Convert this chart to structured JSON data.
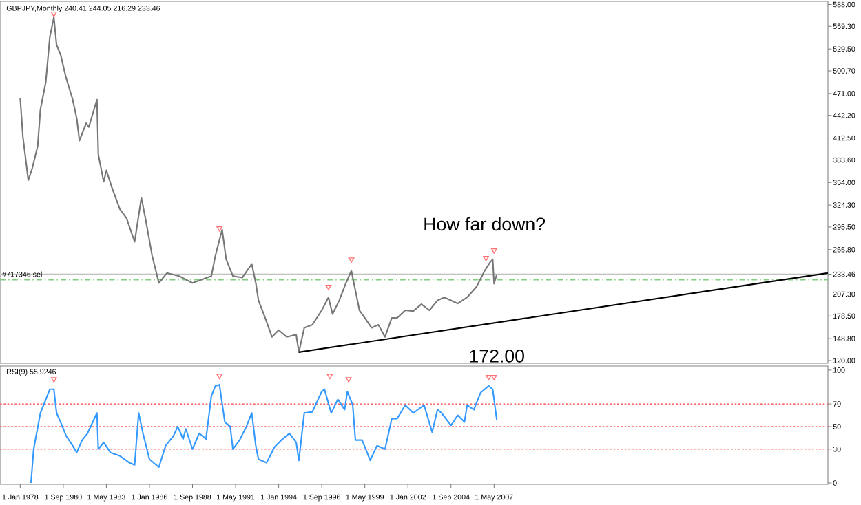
{
  "chart_data": [
    {
      "type": "line",
      "title": "GBPJPY,Monthly  240.41 244.05 216.29 233.46",
      "xlim": [
        "1976-10",
        "2028-01"
      ],
      "ylim": [
        116.4,
        592.1
      ],
      "tick_labels": "y",
      "yticks": [
        {
          "value": 120,
          "label": "120.00"
        },
        {
          "value": 148.8,
          "label": "148.80"
        },
        {
          "value": 178.5,
          "label": "178.50"
        },
        {
          "value": 207.3,
          "label": "207.30"
        },
        {
          "value": 233.46,
          "label": "233.46"
        },
        {
          "value": 265.8,
          "label": "265.80"
        },
        {
          "value": 295.5,
          "label": "295.50"
        },
        {
          "value": 324.3,
          "label": "324.30"
        },
        {
          "value": 354,
          "label": "354.00"
        },
        {
          "value": 383.6,
          "label": "383.60"
        },
        {
          "value": 412.5,
          "label": "412.50"
        },
        {
          "value": 442.2,
          "label": "442.20"
        },
        {
          "value": 471,
          "label": "471.00"
        },
        {
          "value": 500.7,
          "label": "500.70"
        },
        {
          "value": 529.5,
          "label": "529.50"
        },
        {
          "value": 559.3,
          "label": "559.30"
        },
        {
          "value": 588,
          "label": "588.00"
        }
      ],
      "series": [
        {
          "color": "#777777",
          "x": [
            "1978-01",
            "1978-03",
            "1978-07",
            "1978-10",
            "1979-02",
            "1979-04",
            "1979-08",
            "1979-11",
            "1980-02",
            "1980-04",
            "1980-07",
            "1980-11",
            "1981-04",
            "1981-07",
            "1981-09",
            "1982-02",
            "1982-04",
            "1982-10",
            "1982-11",
            "1983-03",
            "1983-05",
            "1983-09",
            "1984-03",
            "1984-08",
            "1985-02",
            "1985-07",
            "1985-10",
            "1986-03",
            "1986-08",
            "1987-02",
            "1987-11",
            "1988-09",
            "1989-11",
            "1990-02",
            "1990-07",
            "1990-10",
            "1991-03",
            "1991-10",
            "1992-05",
            "1992-08",
            "1992-10",
            "1993-03",
            "1993-08",
            "1994-01",
            "1994-07",
            "1995-02",
            "1995-04",
            "1995-08",
            "1996-02",
            "1996-09",
            "1997-02",
            "1997-05",
            "1997-10",
            "1998-03",
            "1998-07",
            "1998-10",
            "1999-01",
            "1999-05",
            "1999-10",
            "2000-03",
            "2000-08",
            "2001-01",
            "2001-05",
            "2001-11",
            "2002-05",
            "2002-11",
            "2003-05",
            "2003-11",
            "2004-04",
            "2005-02",
            "2005-09",
            "2006-04",
            "2006-10",
            "2007-02",
            "2007-04",
            "2007-05",
            "2007-07"
          ],
          "values": [
            465,
            414,
            357,
            373,
            402,
            450,
            486,
            545,
            571,
            535,
            522,
            492,
            463,
            438,
            409,
            432,
            427,
            463,
            391,
            355,
            370,
            348,
            319,
            307,
            276,
            334,
            307,
            258,
            222,
            235,
            231,
            222,
            231,
            258,
            292,
            253,
            231,
            229,
            247,
            222,
            199,
            176,
            151,
            160,
            151,
            154,
            131,
            163,
            167,
            186,
            203,
            181,
            199,
            222,
            238,
            212,
            186,
            176,
            163,
            167,
            151,
            176,
            176,
            186,
            185,
            194,
            186,
            199,
            203,
            195,
            203,
            217,
            238,
            249,
            253,
            221,
            233
          ]
        },
        {
          "type": "line",
          "color": "#000000",
          "x": [
            "1995-04",
            "2028-01"
          ],
          "values": [
            131,
            235
          ]
        },
        {
          "type": "scatter",
          "marker": "triangle",
          "color": "#ff7070",
          "x": [
            "1980-02",
            "1990-05",
            "1997-02",
            "1998-07",
            "2006-11",
            "2007-05"
          ],
          "values": [
            576,
            294,
            217,
            253,
            255,
            265
          ]
        }
      ],
      "ref_lines": [
        {
          "axis": "y",
          "value": 233.46,
          "label": "#717346 sell",
          "color": "#c0c0c0"
        },
        {
          "axis": "y",
          "value": 226,
          "color": "#80d080",
          "line_style": "dashed"
        }
      ],
      "annotations": [
        "How far down?",
        {
          "text": "172.00",
          "x": "2007-07",
          "y": 172
        }
      ]
    },
    {
      "type": "line",
      "title": "RSI(9) 55.9246",
      "xlim": [
        "1976-10",
        "2028-01"
      ],
      "ylim": [
        -1.2,
        103.6
      ],
      "yticks": [
        0,
        30,
        50,
        70,
        100
      ],
      "xticks": [
        {
          "value": "1978-01-01",
          "label": "1 Jan 1978"
        },
        {
          "value": "1980-09-01",
          "label": "1 Sep 1980"
        },
        {
          "value": "1983-05-01",
          "label": "1 May 1983"
        },
        {
          "value": "1986-01-01",
          "label": "1 Jan 1986"
        },
        {
          "value": "1988-09-01",
          "label": "1 Sep 1988"
        },
        {
          "value": "1991-05-01",
          "label": "1 May 1991"
        },
        {
          "value": "1994-01-01",
          "label": "1 Jan 1994"
        },
        {
          "value": "1996-09-01",
          "label": "1 Sep 1996"
        },
        {
          "value": "1999-05-01",
          "label": "1 May 1999"
        },
        {
          "value": "2002-01-01",
          "label": "1 Jan 2002"
        },
        {
          "value": "2004-09-01",
          "label": "1 Sep 2004"
        },
        {
          "value": "2007-05-01",
          "label": "1 May 2007"
        }
      ],
      "series": [
        {
          "color": "#3399ff",
          "x": [
            "1978-09",
            "1978-11",
            "1979-04",
            "1979-08",
            "1979-11",
            "1980-02",
            "1980-04",
            "1980-07",
            "1980-11",
            "1981-04",
            "1981-07",
            "1981-11",
            "1982-03",
            "1982-10",
            "1982-11",
            "1983-03",
            "1983-08",
            "1984-03",
            "1984-10",
            "1985-02",
            "1985-05",
            "1985-08",
            "1986-01",
            "1986-08",
            "1987-01",
            "1987-07",
            "1987-10",
            "1988-02",
            "1988-04",
            "1988-09",
            "1989-02",
            "1989-07",
            "1989-11",
            "1990-02",
            "1990-05",
            "1990-09",
            "1991-01",
            "1991-03",
            "1991-08",
            "1992-01",
            "1992-05",
            "1992-08",
            "1992-10",
            "1993-04",
            "1993-10",
            "1994-03",
            "1994-09",
            "1995-02",
            "1995-04",
            "1995-08",
            "1996-02",
            "1996-09",
            "1996-11",
            "1997-04",
            "1997-09",
            "1998-02",
            "1998-04",
            "1998-08",
            "1998-10",
            "1999-03",
            "1999-09",
            "2000-02",
            "2000-08",
            "2001-01",
            "2001-05",
            "2001-11",
            "2002-05",
            "2003-01",
            "2003-07",
            "2003-11",
            "2004-02",
            "2004-09",
            "2005-02",
            "2005-07",
            "2005-09",
            "2006-02",
            "2006-07",
            "2007-01",
            "2007-04",
            "2007-07"
          ],
          "values": [
            0,
            30,
            62,
            74,
            83,
            83,
            62,
            54,
            42,
            33,
            27,
            38,
            44,
            62,
            30,
            36,
            27,
            24,
            18,
            16,
            62,
            45,
            21,
            14,
            33,
            42,
            50,
            39,
            48,
            30,
            44,
            39,
            77,
            86,
            87,
            54,
            50,
            30,
            38,
            50,
            62,
            33,
            21,
            18,
            32,
            38,
            44,
            36,
            20,
            62,
            63,
            81,
            83,
            62,
            74,
            65,
            81,
            69,
            38,
            38,
            20,
            33,
            30,
            57,
            57,
            69,
            62,
            69,
            45,
            65,
            62,
            51,
            60,
            54,
            69,
            65,
            80,
            86,
            83,
            56
          ]
        },
        {
          "type": "scatter",
          "marker": "triangle",
          "color": "#ff7070",
          "x": [
            "1980-02",
            "1990-05",
            "1997-03",
            "1998-05",
            "2007-01",
            "2007-05"
          ],
          "values": [
            92,
            95,
            95,
            92,
            94,
            94
          ]
        }
      ],
      "ref_lines": [
        {
          "axis": "y",
          "value": 70,
          "color": "#ff6060",
          "line_style": "dotted"
        },
        {
          "axis": "y",
          "value": 50,
          "color": "#ff6060",
          "line_style": "dotted"
        },
        {
          "axis": "y",
          "value": 30,
          "color": "#ff6060",
          "line_style": "dotted"
        }
      ]
    }
  ]
}
